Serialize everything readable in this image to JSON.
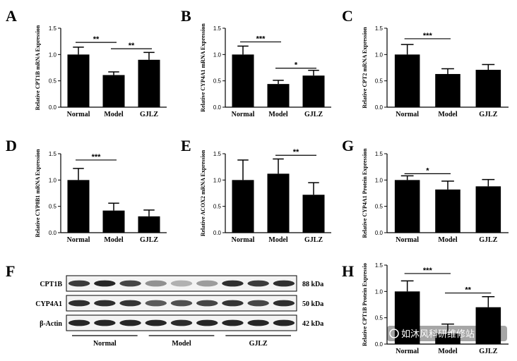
{
  "chart_data": [
    {
      "type": "bar",
      "panel": "A",
      "ylabel": "Relative CPT1B mRNA Expression",
      "categories": [
        "Normal",
        "Model",
        "GJLZ"
      ],
      "values": [
        1.0,
        0.61,
        0.9
      ],
      "errors": [
        0.14,
        0.06,
        0.14
      ],
      "ylim": [
        0,
        1.5
      ],
      "yticks": [
        0.0,
        0.5,
        1.0,
        1.5
      ],
      "yticklabels": [
        "0.0",
        "0.5",
        "1.0",
        "1.5"
      ],
      "significance": [
        {
          "from": 0,
          "to": 1,
          "label": "**",
          "y": 1.23
        },
        {
          "from": 1,
          "to": 2,
          "label": "**",
          "y": 1.11
        }
      ]
    },
    {
      "type": "bar",
      "panel": "B",
      "ylabel": "Relative CYP4A1 mRNA Expression",
      "categories": [
        "Normal",
        "Model",
        "GJLZ"
      ],
      "values": [
        1.0,
        0.44,
        0.6
      ],
      "errors": [
        0.16,
        0.07,
        0.1
      ],
      "ylim": [
        0,
        1.5
      ],
      "yticks": [
        0.0,
        0.5,
        1.0,
        1.5
      ],
      "yticklabels": [
        "0.0",
        "0.5",
        "1.0",
        "1.5"
      ],
      "significance": [
        {
          "from": 0,
          "to": 1,
          "label": "***",
          "y": 1.24
        },
        {
          "from": 1,
          "to": 2,
          "label": "*",
          "y": 0.74
        }
      ]
    },
    {
      "type": "bar",
      "panel": "C",
      "ylabel": "Relative CPT2 mRNA Expression",
      "categories": [
        "Normal",
        "Model",
        "GJLZ"
      ],
      "values": [
        1.0,
        0.63,
        0.71
      ],
      "errors": [
        0.19,
        0.1,
        0.1
      ],
      "ylim": [
        0,
        1.5
      ],
      "yticks": [
        0.0,
        0.5,
        1.0,
        1.5
      ],
      "yticklabels": [
        "0.0",
        "0.5",
        "1.0",
        "1.5"
      ],
      "significance": [
        {
          "from": 0,
          "to": 1,
          "label": "***",
          "y": 1.3
        }
      ]
    },
    {
      "type": "bar",
      "panel": "D",
      "ylabel": "Relative CYP8B1 mRNA Expression",
      "categories": [
        "Normal",
        "Model",
        "GJLZ"
      ],
      "values": [
        1.0,
        0.42,
        0.31
      ],
      "errors": [
        0.22,
        0.14,
        0.12
      ],
      "ylim": [
        0,
        1.5
      ],
      "yticks": [
        0.0,
        0.5,
        1.0,
        1.5
      ],
      "yticklabels": [
        "0.0",
        "0.5",
        "1.0",
        "1.5"
      ],
      "significance": [
        {
          "from": 0,
          "to": 1,
          "label": "***",
          "y": 1.38
        }
      ]
    },
    {
      "type": "bar",
      "panel": "E",
      "ylabel": "Relative ACOX2 mRNA Expression",
      "categories": [
        "Normal",
        "Model",
        "GJLZ"
      ],
      "values": [
        1.0,
        1.12,
        0.72
      ],
      "errors": [
        0.38,
        0.28,
        0.23
      ],
      "ylim": [
        0,
        1.5
      ],
      "yticks": [
        0.0,
        0.5,
        1.0,
        1.5
      ],
      "yticklabels": [
        "0.0",
        "0.5",
        "1.0",
        "1.5"
      ],
      "significance": [
        {
          "from": 1,
          "to": 2,
          "label": "**",
          "y": 1.47
        }
      ]
    },
    {
      "type": "bar",
      "panel": "G",
      "ylabel": "Relative CYP4A1 Protein Expression",
      "categories": [
        "Normal",
        "Model",
        "GJLZ"
      ],
      "values": [
        1.0,
        0.82,
        0.88
      ],
      "errors": [
        0.08,
        0.16,
        0.13
      ],
      "ylim": [
        0,
        1.5
      ],
      "yticks": [
        0.0,
        0.5,
        1.0,
        1.5
      ],
      "yticklabels": [
        "0.0",
        "0.5",
        "1.0",
        "1.5"
      ],
      "significance": [
        {
          "from": 0,
          "to": 1,
          "label": "*",
          "y": 1.12
        }
      ]
    },
    {
      "type": "bar",
      "panel": "H",
      "ylabel": "Relative CPT1B Protein Expressio",
      "categories": [
        "Normal",
        "Model",
        "GJLZ"
      ],
      "values": [
        1.0,
        0.2,
        0.7
      ],
      "errors": [
        0.2,
        0.18,
        0.2
      ],
      "ylim": [
        0,
        1.5
      ],
      "yticks": [
        0.0,
        0.5,
        1.0,
        1.5
      ],
      "yticklabels": [
        "0.0",
        "0.5",
        "1.0",
        "1.5"
      ],
      "significance": [
        {
          "from": 0,
          "to": 1,
          "label": "***",
          "y": 1.34
        },
        {
          "from": 1,
          "to": 2,
          "label": "**",
          "y": 0.97
        }
      ]
    }
  ],
  "western_blot": {
    "panel": "F",
    "rows": [
      {
        "protein": "CPT1B",
        "size": "88 kDa",
        "intensities": [
          0.85,
          0.95,
          0.8,
          0.45,
          0.3,
          0.4,
          0.9,
          0.85,
          0.9
        ]
      },
      {
        "protein": "CYP4A1",
        "size": "50 kDa",
        "intensities": [
          0.9,
          0.9,
          0.88,
          0.7,
          0.75,
          0.8,
          0.88,
          0.8,
          0.9
        ]
      },
      {
        "protein": "β-Actin",
        "size": "42 kDa",
        "intensities": [
          0.95,
          0.95,
          0.95,
          0.95,
          0.92,
          0.95,
          0.95,
          0.95,
          0.95
        ]
      }
    ],
    "groups": [
      "Normal",
      "Model",
      "GJLZ"
    ]
  },
  "watermark": {
    "text": "如沐风科研维修站"
  },
  "colors": {
    "bar": "#000000",
    "axis": "#000000",
    "band": "#1a1a1a",
    "background": "#ffffff"
  }
}
